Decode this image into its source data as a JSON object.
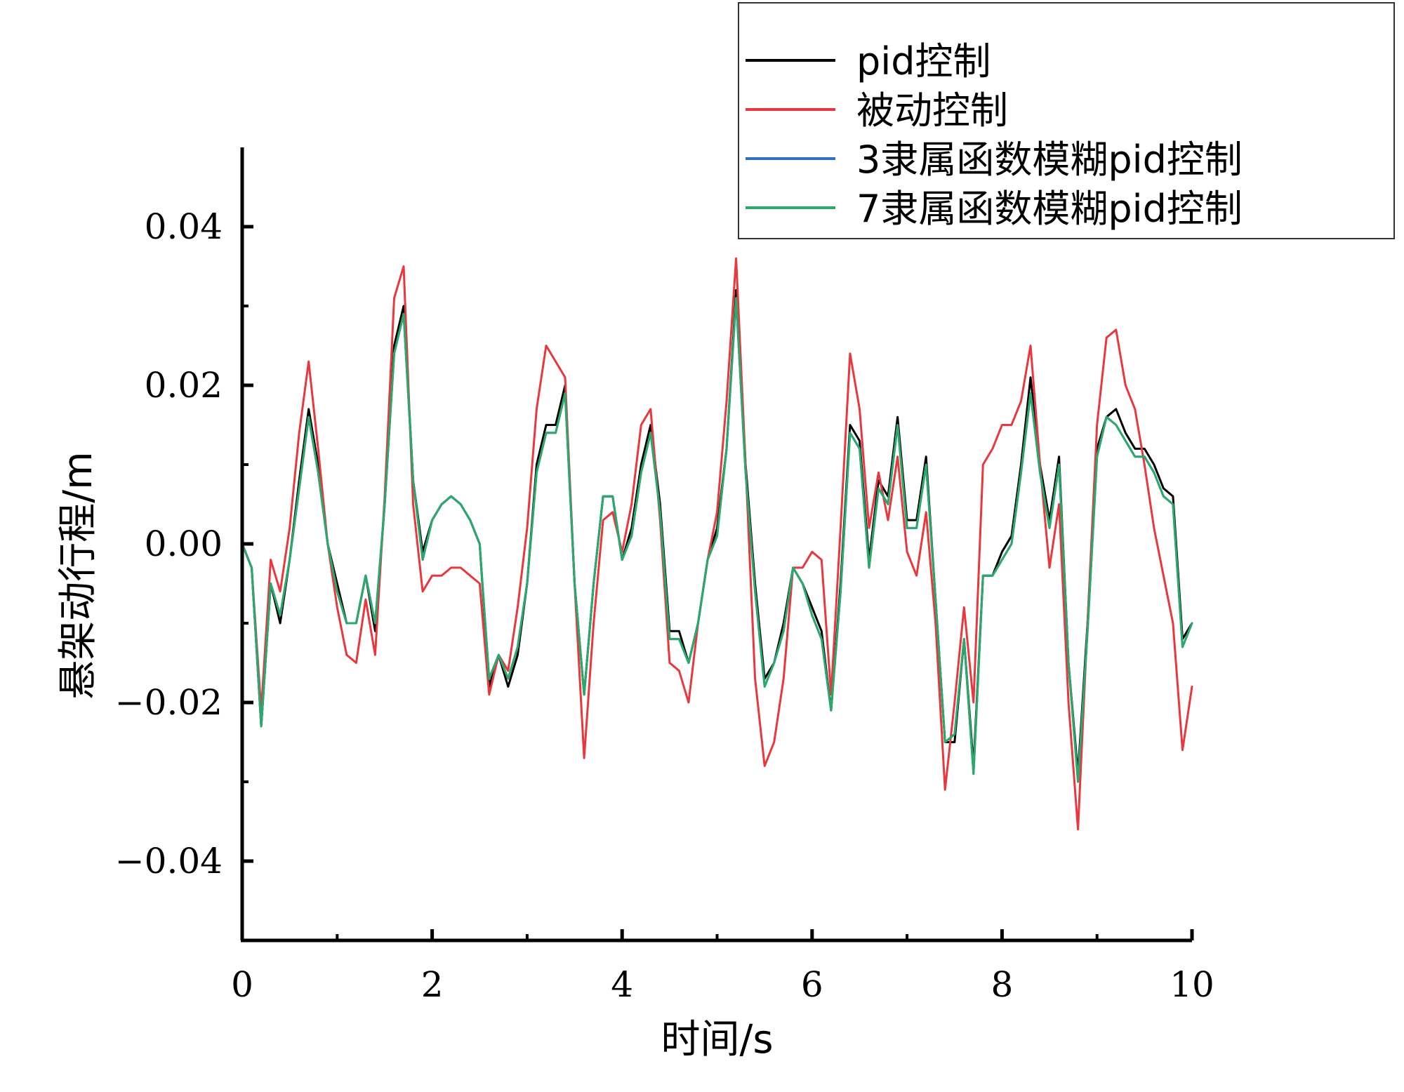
{
  "chart_data": {
    "type": "line",
    "xlabel": "时间/s",
    "ylabel": "悬架动行程/m",
    "xlim": [
      0,
      10
    ],
    "ylim": [
      -0.05,
      0.05
    ],
    "x_ticks": [
      "0",
      "2",
      "4",
      "6",
      "8",
      "10"
    ],
    "y_ticks": [
      "−0.04",
      "−0.02",
      "0.00",
      "0.02",
      "0.04"
    ],
    "grid": false,
    "legend_position": "top-right",
    "x": [
      0,
      0.1,
      0.2,
      0.3,
      0.4,
      0.5,
      0.6,
      0.7,
      0.8,
      0.9,
      1.0,
      1.1,
      1.2,
      1.3,
      1.4,
      1.5,
      1.6,
      1.7,
      1.8,
      1.9,
      2.0,
      2.1,
      2.2,
      2.3,
      2.4,
      2.5,
      2.6,
      2.7,
      2.8,
      2.9,
      3.0,
      3.1,
      3.2,
      3.3,
      3.4,
      3.5,
      3.6,
      3.7,
      3.8,
      3.9,
      4.0,
      4.1,
      4.2,
      4.3,
      4.4,
      4.5,
      4.6,
      4.7,
      4.8,
      4.9,
      5.0,
      5.1,
      5.2,
      5.3,
      5.4,
      5.5,
      5.6,
      5.7,
      5.8,
      5.9,
      6.0,
      6.1,
      6.2,
      6.3,
      6.4,
      6.5,
      6.6,
      6.7,
      6.8,
      6.9,
      7.0,
      7.1,
      7.2,
      7.3,
      7.4,
      7.5,
      7.6,
      7.7,
      7.8,
      7.9,
      8.0,
      8.1,
      8.2,
      8.3,
      8.4,
      8.5,
      8.6,
      8.7,
      8.8,
      8.9,
      9.0,
      9.1,
      9.2,
      9.3,
      9.4,
      9.5,
      9.6,
      9.7,
      9.8,
      9.9,
      10.0
    ],
    "series": [
      {
        "name": "pid控制",
        "color": "#000000",
        "values": [
          0,
          -0.003,
          -0.023,
          -0.005,
          -0.01,
          -0.002,
          0.008,
          0.017,
          0.01,
          0,
          -0.005,
          -0.01,
          -0.01,
          -0.004,
          -0.011,
          0.005,
          0.025,
          0.03,
          0.008,
          -0.001,
          0.003,
          0.005,
          0.006,
          0.005,
          0.003,
          0,
          -0.018,
          -0.014,
          -0.018,
          -0.014,
          -0.005,
          0.01,
          0.015,
          0.015,
          0.02,
          -0.005,
          -0.019,
          -0.005,
          0.006,
          0.006,
          -0.002,
          0.002,
          0.01,
          0.015,
          0.005,
          -0.011,
          -0.011,
          -0.015,
          -0.01,
          -0.002,
          0.002,
          0.012,
          0.032,
          0.01,
          -0.005,
          -0.017,
          -0.015,
          -0.01,
          -0.003,
          -0.005,
          -0.008,
          -0.011,
          -0.021,
          -0.005,
          0.015,
          0.013,
          -0.002,
          0.008,
          0.006,
          0.016,
          0.003,
          0.003,
          0.011,
          -0.007,
          -0.025,
          -0.025,
          -0.012,
          -0.028,
          -0.004,
          -0.004,
          -0.001,
          0.001,
          0.01,
          0.021,
          0.01,
          0.003,
          0.011,
          -0.015,
          -0.029,
          -0.01,
          0.012,
          0.016,
          0.017,
          0.014,
          0.012,
          0.012,
          0.01,
          0.007,
          0.006,
          -0.012,
          -0.01
        ],
        "legend_label": "pid控制"
      },
      {
        "name": "被动控制",
        "color": "#e8383d",
        "values": [
          0,
          -0.003,
          -0.021,
          -0.002,
          -0.006,
          0.002,
          0.014,
          0.023,
          0.012,
          0,
          -0.008,
          -0.014,
          -0.015,
          -0.007,
          -0.014,
          0.006,
          0.031,
          0.035,
          0.005,
          -0.006,
          -0.004,
          -0.004,
          -0.003,
          -0.003,
          -0.004,
          -0.005,
          -0.019,
          -0.014,
          -0.016,
          -0.008,
          0.002,
          0.017,
          0.025,
          0.023,
          0.021,
          -0.005,
          -0.027,
          -0.01,
          0.003,
          0.004,
          -0.001,
          0.005,
          0.015,
          0.017,
          0.003,
          -0.015,
          -0.016,
          -0.02,
          -0.01,
          -0.002,
          0.004,
          0.018,
          0.036,
          0.01,
          -0.017,
          -0.028,
          -0.025,
          -0.017,
          -0.003,
          -0.003,
          -0.001,
          -0.002,
          -0.019,
          0.002,
          0.024,
          0.017,
          0.002,
          0.009,
          0.003,
          0.011,
          -0.001,
          -0.004,
          0.004,
          -0.01,
          -0.031,
          -0.02,
          -0.008,
          -0.02,
          0.01,
          0.012,
          0.015,
          0.015,
          0.018,
          0.025,
          0.01,
          -0.003,
          0.005,
          -0.02,
          -0.036,
          -0.01,
          0.015,
          0.026,
          0.027,
          0.02,
          0.017,
          0.01,
          0.002,
          -0.004,
          -0.01,
          -0.026,
          -0.018
        ],
        "legend_label": "被动控制"
      },
      {
        "name": "3隶属函数模糊pid控制",
        "color": "#2f6fc7",
        "values": [
          0,
          -0.003,
          -0.023,
          -0.005,
          -0.009,
          -0.002,
          0.007,
          0.016,
          0.009,
          0,
          -0.006,
          -0.01,
          -0.01,
          -0.004,
          -0.01,
          0.005,
          0.024,
          0.029,
          0.008,
          -0.002,
          0.003,
          0.005,
          0.006,
          0.005,
          0.003,
          0,
          -0.017,
          -0.014,
          -0.017,
          -0.013,
          -0.005,
          0.009,
          0.014,
          0.014,
          0.019,
          -0.005,
          -0.019,
          -0.005,
          0.006,
          0.006,
          -0.002,
          0.001,
          0.009,
          0.014,
          0.004,
          -0.012,
          -0.012,
          -0.015,
          -0.01,
          -0.002,
          0.001,
          0.012,
          0.031,
          0.009,
          -0.006,
          -0.018,
          -0.015,
          -0.011,
          -0.003,
          -0.005,
          -0.009,
          -0.012,
          -0.021,
          -0.006,
          0.014,
          0.012,
          -0.003,
          0.007,
          0.005,
          0.015,
          0.002,
          0.002,
          0.01,
          -0.007,
          -0.025,
          -0.024,
          -0.012,
          -0.029,
          -0.004,
          -0.004,
          -0.002,
          0,
          0.009,
          0.019,
          0.009,
          0.002,
          0.01,
          -0.015,
          -0.03,
          -0.011,
          0.011,
          0.016,
          0.015,
          0.013,
          0.011,
          0.011,
          0.009,
          0.006,
          0.005,
          -0.013,
          -0.01
        ],
        "legend_label": "3隶属函数模糊pid控制"
      },
      {
        "name": "7隶属函数模糊pid控制",
        "color": "#2ca86b",
        "values": [
          0,
          -0.003,
          -0.023,
          -0.005,
          -0.009,
          -0.002,
          0.007,
          0.016,
          0.009,
          0,
          -0.006,
          -0.01,
          -0.01,
          -0.004,
          -0.01,
          0.005,
          0.024,
          0.029,
          0.008,
          -0.002,
          0.003,
          0.005,
          0.006,
          0.005,
          0.003,
          0,
          -0.017,
          -0.014,
          -0.017,
          -0.013,
          -0.005,
          0.009,
          0.014,
          0.014,
          0.019,
          -0.005,
          -0.019,
          -0.005,
          0.006,
          0.006,
          -0.002,
          0.001,
          0.009,
          0.014,
          0.004,
          -0.012,
          -0.012,
          -0.015,
          -0.01,
          -0.002,
          0.001,
          0.012,
          0.031,
          0.009,
          -0.006,
          -0.018,
          -0.015,
          -0.011,
          -0.003,
          -0.005,
          -0.009,
          -0.012,
          -0.021,
          -0.006,
          0.014,
          0.012,
          -0.003,
          0.007,
          0.005,
          0.015,
          0.002,
          0.002,
          0.01,
          -0.007,
          -0.025,
          -0.024,
          -0.012,
          -0.029,
          -0.004,
          -0.004,
          -0.002,
          0,
          0.009,
          0.019,
          0.009,
          0.002,
          0.01,
          -0.015,
          -0.03,
          -0.011,
          0.011,
          0.016,
          0.015,
          0.013,
          0.011,
          0.011,
          0.009,
          0.006,
          0.005,
          -0.013,
          -0.01
        ],
        "legend_label": "7隶属函数模糊pid控制"
      }
    ]
  }
}
